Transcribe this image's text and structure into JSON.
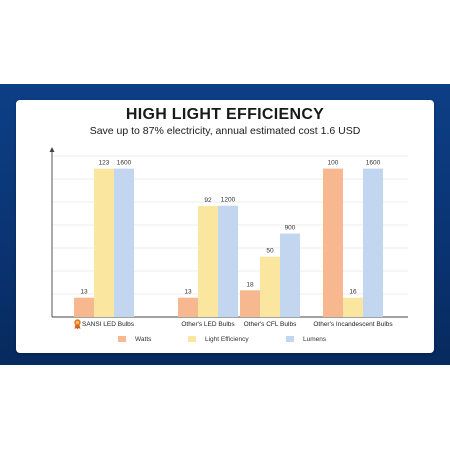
{
  "title": "HIGH LIGHT EFFICIENCY",
  "subtitle": "Save up to 87% electricity, annual estimated cost 1.6 USD",
  "colors": {
    "watts": "#f7b890",
    "light_efficiency": "#fbe6a0",
    "lumens": "#c3d6ef",
    "award": "#e8742a"
  },
  "chart_data": {
    "type": "bar",
    "categories": [
      "SANSI LED Bulbs",
      "Other's LED Bulbs",
      "Other's CFL Bulbs",
      "Other's Incandescent Bulbs"
    ],
    "series": [
      {
        "name": "Watts",
        "values": [
          13,
          13,
          18,
          100
        ],
        "color_key": "watts"
      },
      {
        "name": "Light Efficiency",
        "values": [
          123,
          92,
          50,
          16
        ],
        "color_key": "light_efficiency"
      },
      {
        "name": "Lumens",
        "values": [
          1600,
          1200,
          900,
          1600
        ],
        "color_key": "lumens"
      }
    ],
    "data_labels": [
      [
        "13",
        "123",
        "1600"
      ],
      [
        "13",
        "92",
        "1200"
      ],
      [
        "18",
        "50",
        "900"
      ],
      [
        "100",
        "16",
        "1600"
      ]
    ],
    "independent_scales": true,
    "grid": true,
    "legend_position": "bottom",
    "highlight_category_icon": "award-ribbon-icon"
  }
}
